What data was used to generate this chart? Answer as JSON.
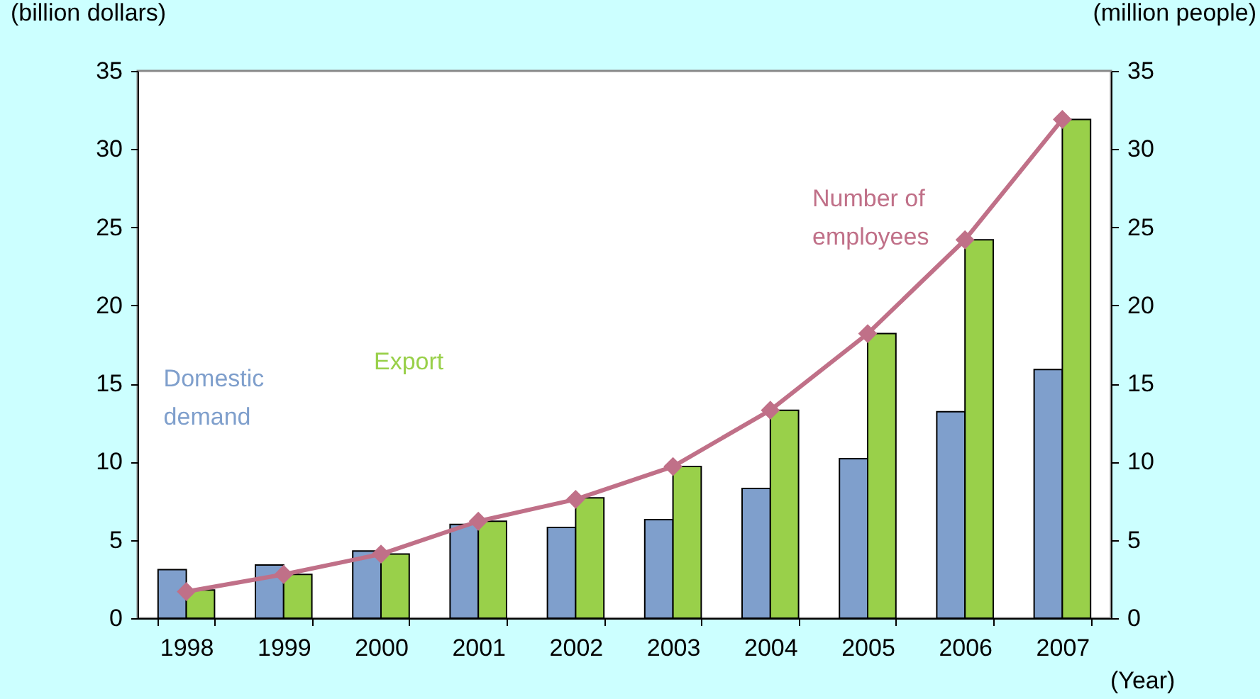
{
  "chart_data": {
    "type": "bar",
    "ylabel": "(billion dollars)",
    "y2label": "(million people)",
    "xlabel": "(Year)",
    "categories": [
      "1998",
      "1999",
      "2000",
      "2001",
      "2002",
      "2003",
      "2004",
      "2005",
      "2006",
      "2007"
    ],
    "series": [
      {
        "name": "Domestic demand",
        "color": "#7f9fcc",
        "values": [
          3.1,
          3.4,
          4.3,
          6.0,
          5.8,
          6.3,
          8.3,
          10.2,
          13.2,
          15.9
        ]
      },
      {
        "name": "Export",
        "color": "#99d04a",
        "values": [
          1.8,
          2.8,
          4.1,
          6.2,
          7.7,
          9.7,
          13.3,
          18.2,
          24.2,
          31.9
        ]
      },
      {
        "name": "Number of employees",
        "type": "line",
        "axis": "y2",
        "color": "#c07088",
        "marker": "diamond",
        "values": [
          1.7,
          2.8,
          4.1,
          6.2,
          7.6,
          9.7,
          13.3,
          18.2,
          24.2,
          31.9
        ]
      }
    ],
    "ylim": [
      0,
      35
    ],
    "yticks": [
      0,
      5,
      10,
      15,
      20,
      25,
      30,
      35
    ],
    "y2lim": [
      0,
      35
    ],
    "y2ticks": [
      0,
      5,
      10,
      15,
      20,
      25,
      30,
      35
    ],
    "grid": false,
    "legend": false
  }
}
